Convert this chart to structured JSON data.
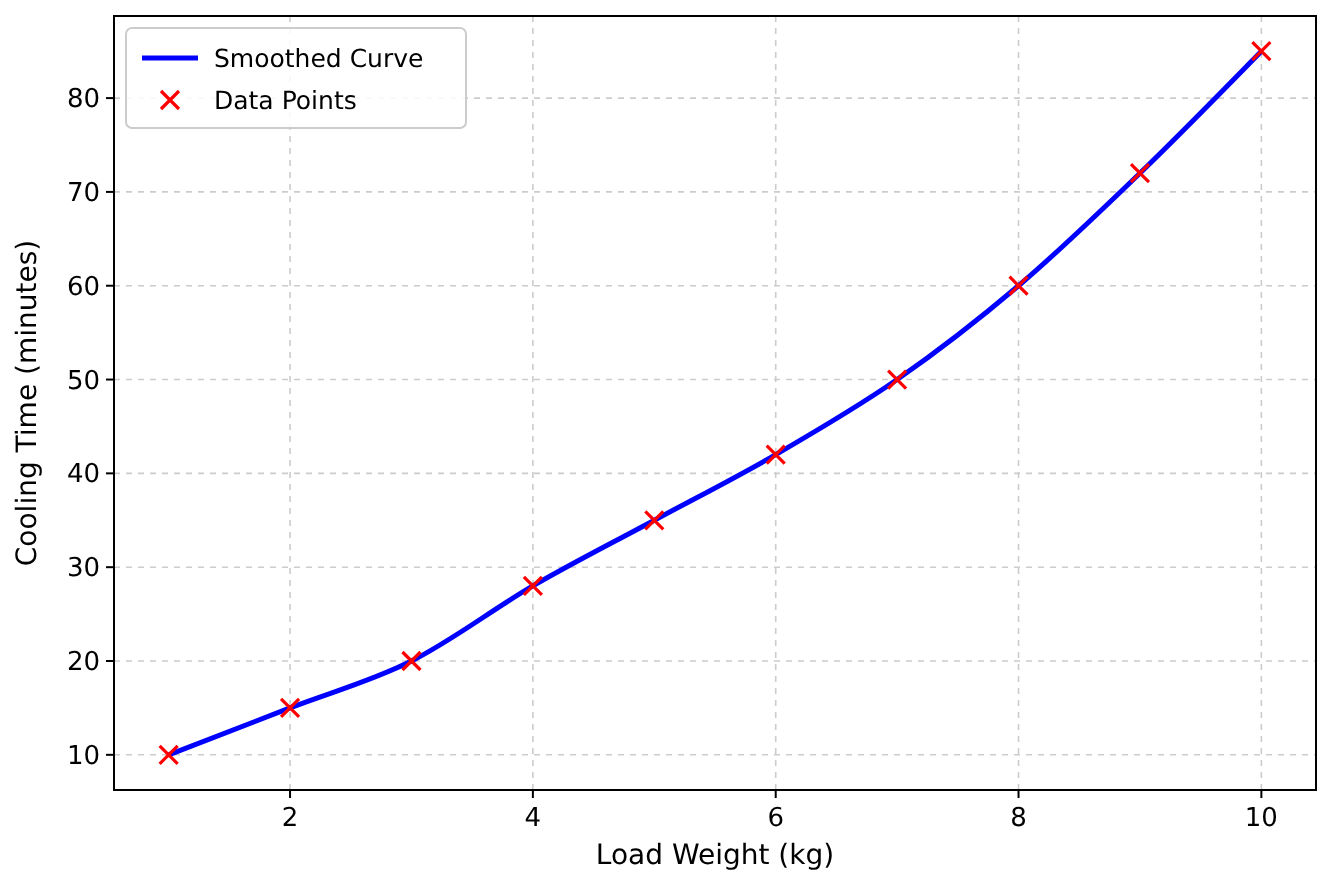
{
  "chart_data": {
    "type": "line",
    "xlabel": "Load Weight (kg)",
    "ylabel": "Cooling Time (minutes)",
    "xlim": [
      0.55,
      10.45
    ],
    "xticks": [
      2,
      4,
      6,
      8,
      10
    ],
    "ylim": [
      6.25,
      88.75
    ],
    "yticks": [
      10,
      20,
      30,
      40,
      50,
      60,
      70,
      80
    ],
    "grid": true,
    "legend": "top left",
    "series": [
      {
        "name": "Smoothed Curve",
        "color": "#0000ff",
        "line_style": "solid",
        "marker": "none",
        "x": [
          1,
          2,
          3,
          4,
          5,
          6,
          7,
          8,
          9,
          10
        ],
        "values": [
          10,
          15,
          20,
          28,
          35,
          42,
          50,
          60,
          72,
          85
        ]
      },
      {
        "name": "Data Points",
        "type": "scatter",
        "color": "#ff0000",
        "marker": "cross",
        "x": [
          1,
          2,
          3,
          4,
          5,
          6,
          7,
          8,
          9,
          10
        ],
        "values": [
          10,
          15,
          20,
          28,
          35,
          42,
          50,
          60,
          72,
          85
        ]
      }
    ]
  }
}
